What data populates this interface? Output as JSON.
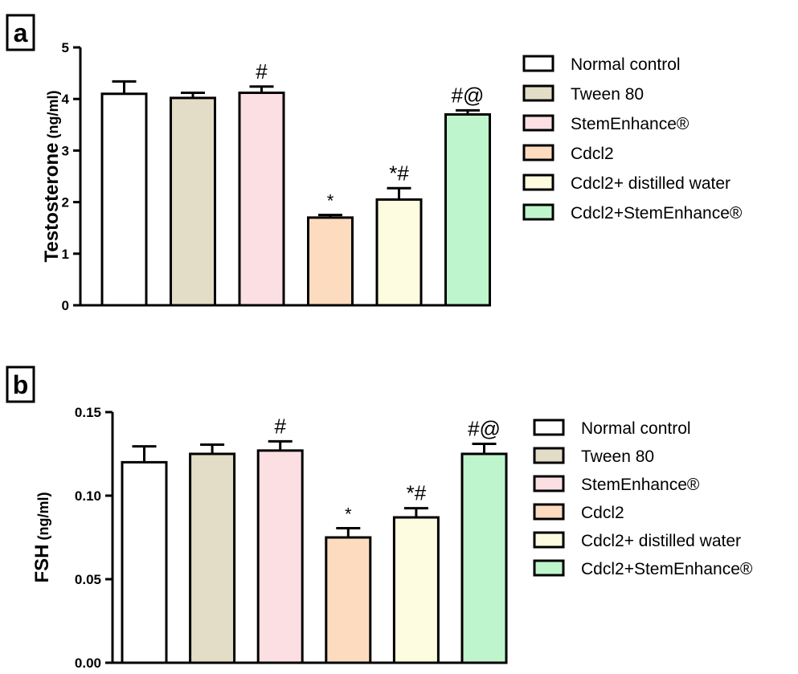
{
  "colors": {
    "Normal control": "#ffffff",
    "Tween 80": "#e3dcc7",
    "StemEnhance®": "#fcdfe3",
    "Cdcl2": "#fcdbbf",
    "Cdcl2+ distilled water": "#fdfbe0",
    "Cdcl2+StemEnhance®": "#bff5cc",
    "stroke": "#000000"
  },
  "chart_data": [
    {
      "panel_label": "a",
      "type": "bar",
      "ylabel_main": "Testosterone",
      "ylabel_unit": "(ng/ml)",
      "ylim": [
        0,
        5
      ],
      "yticks": [
        0,
        1,
        2,
        3,
        4,
        5
      ],
      "ytick_labels": [
        "0",
        "1",
        "2",
        "3",
        "4",
        "5"
      ],
      "categories": [
        "Normal control",
        "Tween 80",
        "StemEnhance®",
        "Cdcl2",
        "Cdcl2+ distilled water",
        "Cdcl2+StemEnhance®"
      ],
      "values": [
        4.1,
        4.02,
        4.12,
        1.7,
        2.05,
        3.7
      ],
      "errors": [
        0.24,
        0.1,
        0.12,
        0.05,
        0.22,
        0.08
      ],
      "annotations": [
        "",
        "",
        "#",
        "*",
        "*#",
        "#@"
      ],
      "legend": [
        "Normal control",
        "Tween 80",
        "StemEnhance®",
        "Cdcl2",
        "Cdcl2+ distilled water",
        "Cdcl2+StemEnhance®"
      ],
      "legend_position": "right",
      "grid": false
    },
    {
      "panel_label": "b",
      "type": "bar",
      "ylabel_main": "FSH",
      "ylabel_unit": "(ng/ml)",
      "ylim": [
        0,
        0.15
      ],
      "yticks": [
        0,
        0.05,
        0.1,
        0.15
      ],
      "ytick_labels": [
        "0.00",
        "0.05",
        "0.10",
        "0.15"
      ],
      "categories": [
        "Normal control",
        "Tween 80",
        "StemEnhance®",
        "Cdcl2",
        "Cdcl2+ distilled water",
        "Cdcl2+StemEnhance®"
      ],
      "values": [
        0.12,
        0.125,
        0.127,
        0.075,
        0.087,
        0.125
      ],
      "errors": [
        0.0095,
        0.0055,
        0.0055,
        0.0055,
        0.0055,
        0.006
      ],
      "annotations": [
        "",
        "",
        "#",
        "*",
        "*#",
        "#@"
      ],
      "legend": [
        "Normal control",
        "Tween 80",
        "StemEnhance®",
        "Cdcl2",
        "Cdcl2+ distilled water",
        "Cdcl2+StemEnhance®"
      ],
      "legend_position": "right",
      "grid": false
    }
  ]
}
